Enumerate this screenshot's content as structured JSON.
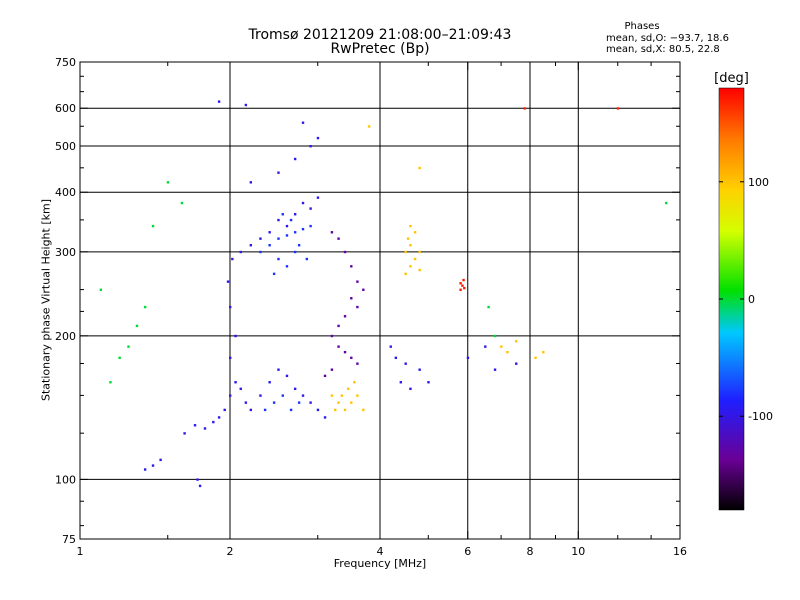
{
  "header": {
    "title": "Tromsø 20121209 21:08:00–21:09:43",
    "subtitle": "RwPretec (Bp)",
    "stats_heading": "Phases",
    "stats_o": "mean, sd,O: −93.7, 18.6",
    "stats_x": "mean, sd,X:  80.5, 22.8"
  },
  "chart_data": {
    "type": "scatter",
    "title": "Tromsø 20121209 21:08:00–21:09:43",
    "subtitle": "RwPretec (Bp)",
    "xlabel": "Frequency [MHz]",
    "ylabel": "Stationary phase Virtual Height [km]",
    "x_scale": "log",
    "y_scale": "log",
    "xlim": [
      1,
      16
    ],
    "ylim": [
      75,
      750
    ],
    "x_ticks": [
      1,
      2,
      4,
      6,
      8,
      10,
      16
    ],
    "x_tick_labels": [
      "1",
      "2",
      "4",
      "6",
      "8",
      "10",
      "16"
    ],
    "x_minor_ticks": [
      1.5,
      3,
      5,
      7,
      9,
      12,
      14
    ],
    "y_ticks": [
      75,
      100,
      200,
      300,
      400,
      500,
      600,
      750
    ],
    "y_tick_labels": [
      "75",
      "100",
      "200",
      "300",
      "400",
      "500",
      "600",
      "750"
    ],
    "y_minor_ticks": [
      80,
      90,
      125,
      150,
      175,
      225,
      250,
      350,
      450,
      550,
      650,
      700
    ],
    "x_grid": [
      2,
      4,
      6,
      8,
      10
    ],
    "y_grid": [
      100,
      200,
      300,
      400,
      500,
      600
    ],
    "grid": true,
    "colorbar": {
      "label": "[deg]",
      "range": [
        -180,
        180
      ],
      "ticks": [
        -100,
        0,
        100
      ],
      "tick_labels": [
        "-100",
        "0",
        "100"
      ]
    },
    "series": [
      {
        "color_value": -95,
        "points": [
          [
            1.62,
            125
          ],
          [
            1.7,
            130
          ],
          [
            1.78,
            128
          ],
          [
            1.85,
            132
          ],
          [
            1.9,
            135
          ],
          [
            1.95,
            140
          ],
          [
            2.0,
            150
          ],
          [
            2.05,
            160
          ],
          [
            2.1,
            155
          ],
          [
            2.15,
            145
          ],
          [
            2.2,
            140
          ],
          [
            2.3,
            150
          ],
          [
            2.4,
            160
          ],
          [
            2.5,
            170
          ],
          [
            2.6,
            165
          ],
          [
            2.7,
            155
          ],
          [
            2.8,
            150
          ],
          [
            2.9,
            145
          ],
          [
            3.0,
            140
          ],
          [
            3.1,
            135
          ],
          [
            2.0,
            180
          ],
          [
            2.05,
            200
          ],
          [
            2.0,
            230
          ],
          [
            1.98,
            260
          ],
          [
            2.02,
            290
          ],
          [
            2.1,
            300
          ],
          [
            2.2,
            310
          ],
          [
            2.3,
            320
          ],
          [
            2.4,
            330
          ],
          [
            2.5,
            350
          ],
          [
            2.6,
            340
          ],
          [
            2.7,
            360
          ],
          [
            2.8,
            380
          ],
          [
            2.9,
            370
          ],
          [
            3.0,
            390
          ],
          [
            2.2,
            420
          ],
          [
            2.5,
            440
          ],
          [
            2.7,
            470
          ],
          [
            2.9,
            500
          ],
          [
            3.0,
            520
          ],
          [
            2.8,
            560
          ],
          [
            1.72,
            100
          ],
          [
            1.74,
            97
          ],
          [
            1.45,
            110
          ],
          [
            1.4,
            107
          ],
          [
            1.35,
            105
          ],
          [
            1.9,
            620
          ],
          [
            2.15,
            610
          ],
          [
            4.2,
            190
          ],
          [
            4.3,
            180
          ],
          [
            4.5,
            175
          ],
          [
            4.4,
            160
          ],
          [
            4.6,
            155
          ],
          [
            4.8,
            170
          ],
          [
            5.0,
            160
          ],
          [
            6.0,
            180
          ],
          [
            6.5,
            190
          ],
          [
            6.8,
            170
          ],
          [
            7.5,
            175
          ]
        ]
      },
      {
        "color_value": -130,
        "points": [
          [
            3.2,
            200
          ],
          [
            3.3,
            210
          ],
          [
            3.4,
            220
          ],
          [
            3.5,
            240
          ],
          [
            3.6,
            260
          ],
          [
            3.5,
            280
          ],
          [
            3.4,
            300
          ],
          [
            3.3,
            320
          ],
          [
            3.2,
            330
          ],
          [
            3.6,
            230
          ],
          [
            3.7,
            250
          ],
          [
            3.3,
            190
          ],
          [
            3.4,
            185
          ],
          [
            3.5,
            180
          ],
          [
            3.6,
            175
          ],
          [
            3.2,
            170
          ],
          [
            3.1,
            165
          ]
        ]
      },
      {
        "color_value": -80,
        "points": [
          [
            2.3,
            300
          ],
          [
            2.4,
            310
          ],
          [
            2.5,
            320
          ],
          [
            2.6,
            325
          ],
          [
            2.7,
            330
          ],
          [
            2.8,
            335
          ],
          [
            2.9,
            340
          ],
          [
            2.5,
            290
          ],
          [
            2.6,
            280
          ],
          [
            2.7,
            300
          ],
          [
            2.45,
            270
          ],
          [
            2.55,
            360
          ],
          [
            2.65,
            350
          ],
          [
            2.75,
            310
          ],
          [
            2.85,
            290
          ],
          [
            2.35,
            140
          ],
          [
            2.45,
            145
          ],
          [
            2.55,
            150
          ],
          [
            2.65,
            140
          ],
          [
            2.75,
            145
          ]
        ]
      },
      {
        "color_value": 100,
        "points": [
          [
            3.2,
            150
          ],
          [
            3.3,
            145
          ],
          [
            3.4,
            140
          ],
          [
            3.5,
            145
          ],
          [
            3.6,
            150
          ],
          [
            3.7,
            140
          ],
          [
            3.55,
            160
          ],
          [
            3.45,
            155
          ],
          [
            3.25,
            140
          ],
          [
            3.35,
            150
          ],
          [
            4.5,
            300
          ],
          [
            4.6,
            310
          ],
          [
            4.7,
            290
          ],
          [
            4.8,
            300
          ],
          [
            4.6,
            280
          ],
          [
            4.5,
            270
          ],
          [
            4.7,
            330
          ],
          [
            4.6,
            340
          ],
          [
            4.55,
            320
          ],
          [
            4.8,
            275
          ],
          [
            7.0,
            190
          ],
          [
            7.2,
            185
          ],
          [
            7.5,
            195
          ],
          [
            8.2,
            180
          ],
          [
            8.5,
            185
          ],
          [
            4.8,
            450
          ],
          [
            3.8,
            550
          ]
        ]
      },
      {
        "color_value": 170,
        "points": [
          [
            5.8,
            258
          ],
          [
            5.85,
            255
          ],
          [
            5.9,
            252
          ],
          [
            5.8,
            250
          ],
          [
            5.88,
            262
          ],
          [
            12.0,
            600
          ],
          [
            7.8,
            600
          ]
        ]
      },
      {
        "color_value": 0,
        "points": [
          [
            1.2,
            180
          ],
          [
            1.25,
            190
          ],
          [
            1.3,
            210
          ],
          [
            1.35,
            230
          ],
          [
            1.15,
            160
          ],
          [
            1.4,
            340
          ],
          [
            1.5,
            420
          ],
          [
            1.6,
            380
          ],
          [
            1.1,
            250
          ],
          [
            6.6,
            230
          ],
          [
            6.8,
            200
          ],
          [
            15.0,
            380
          ]
        ]
      }
    ]
  }
}
